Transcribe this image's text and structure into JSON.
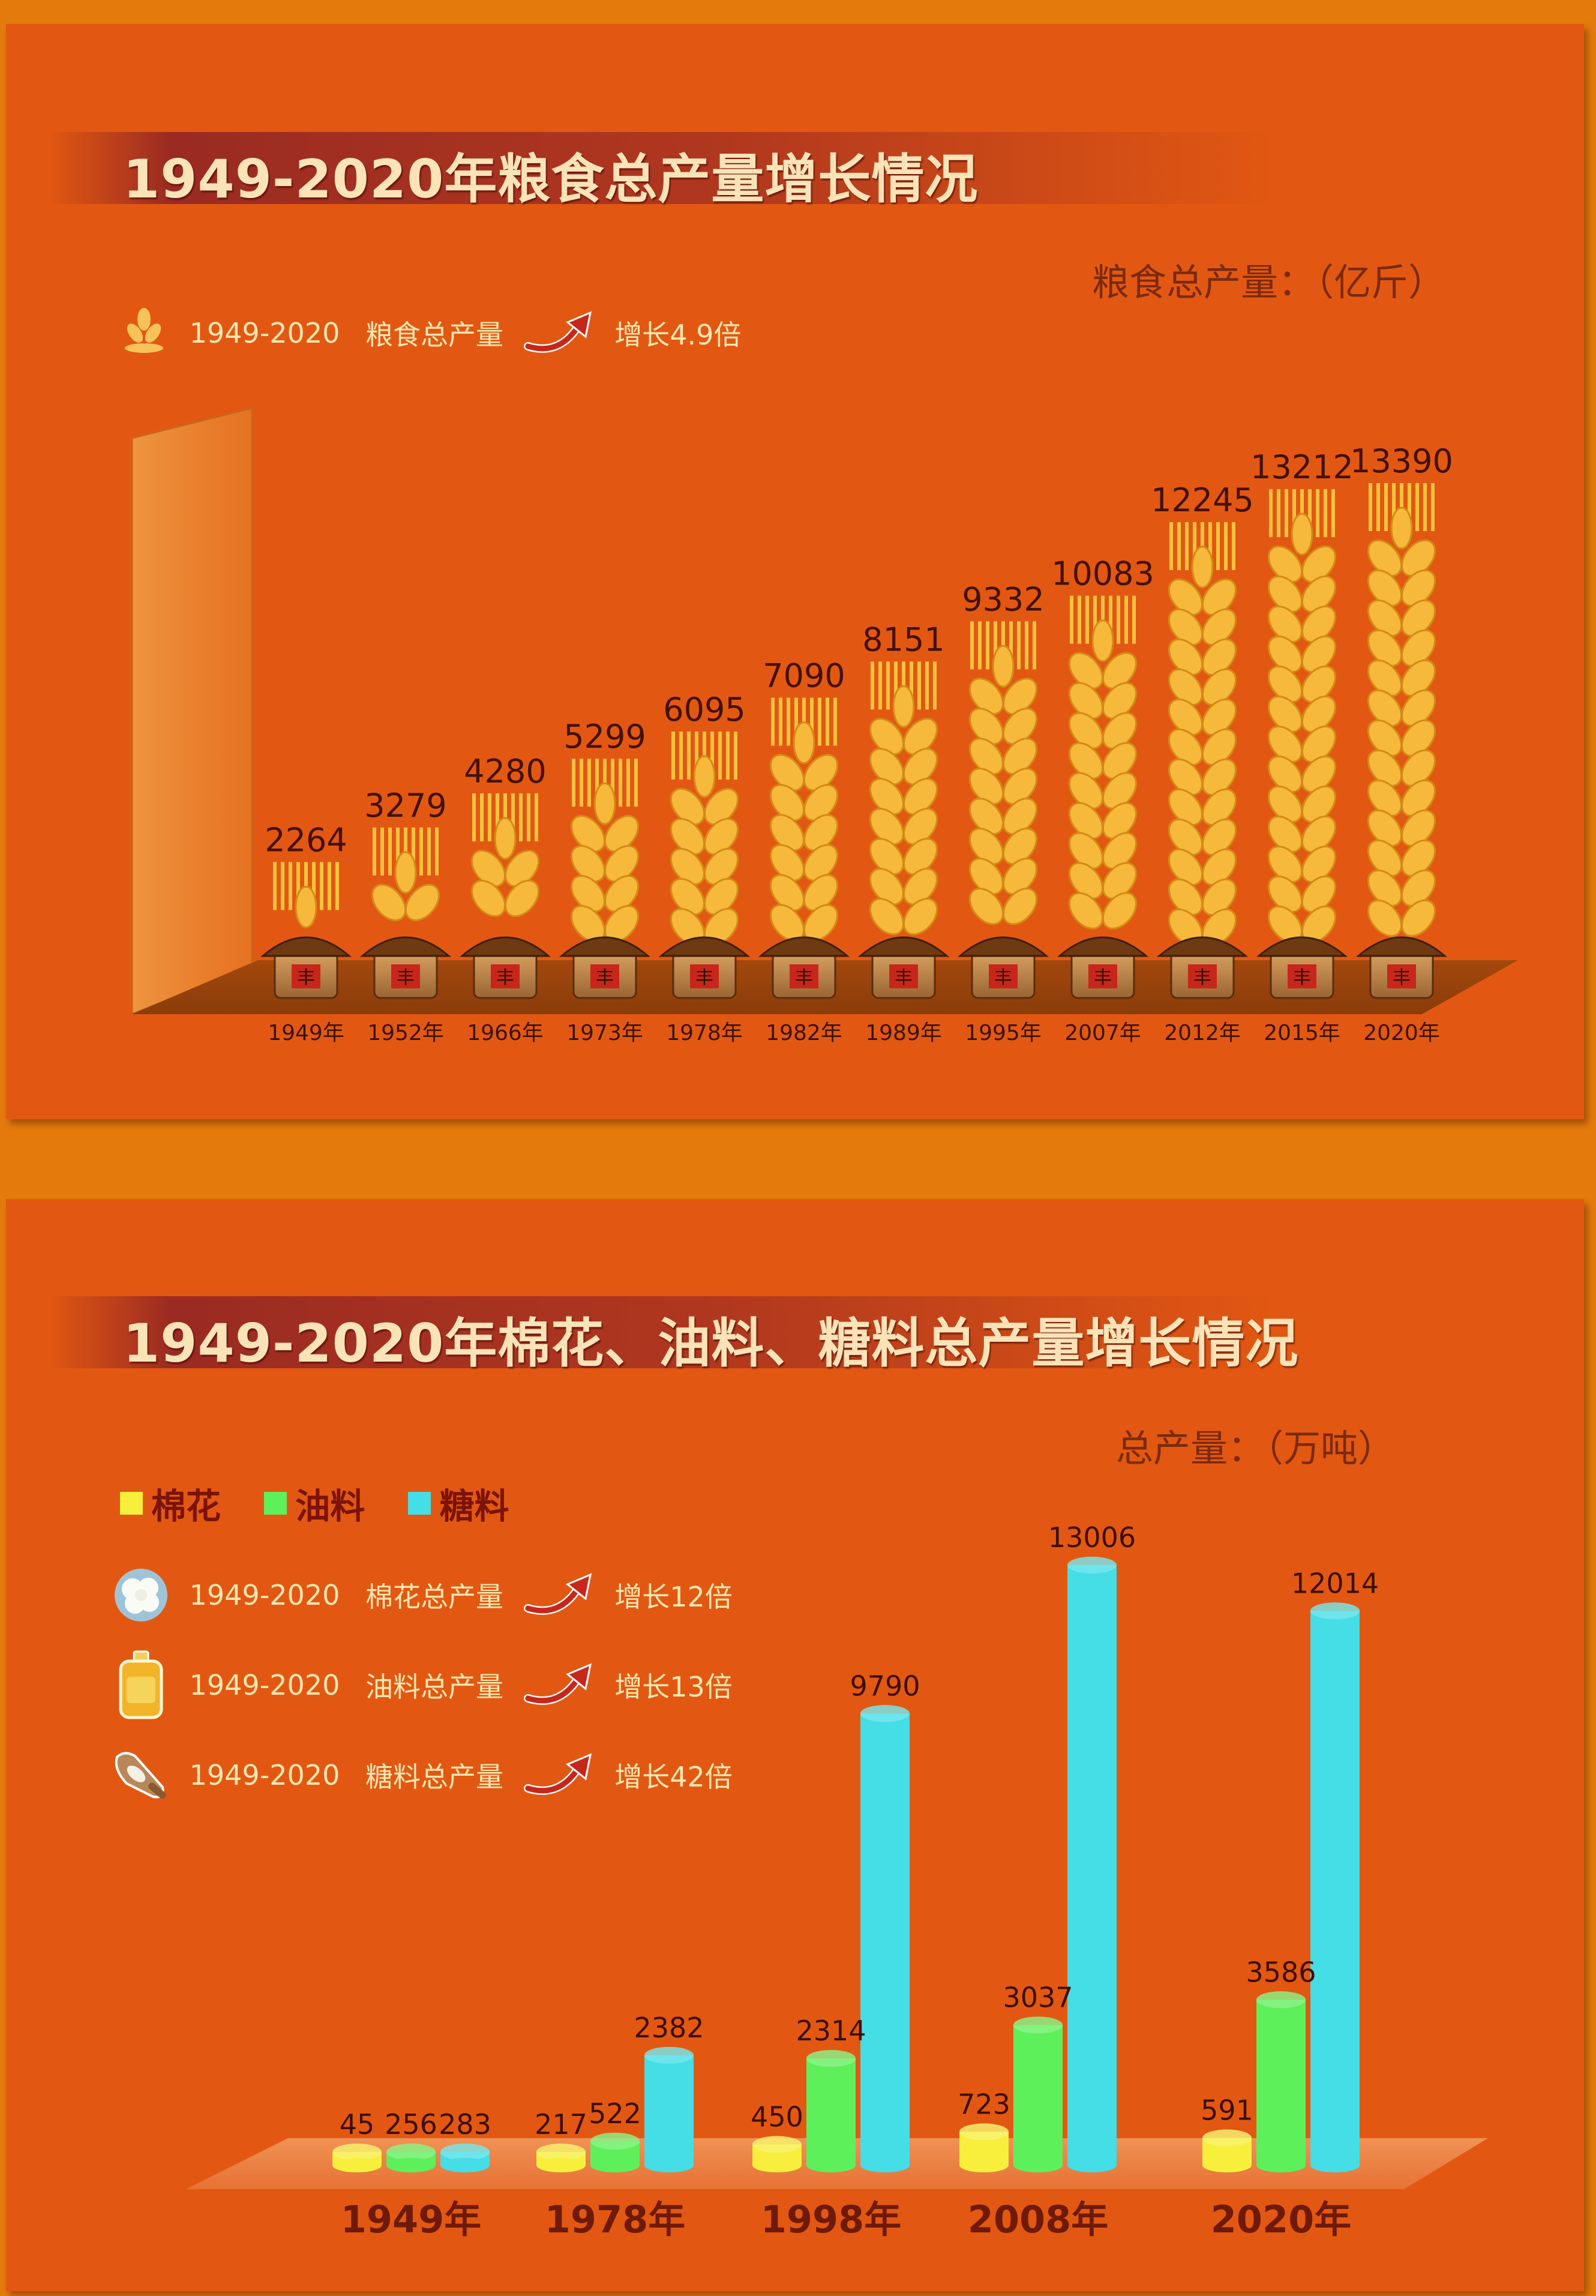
{
  "grain": {
    "title": "1949-2020年粮食总产量增长情况",
    "unit": "粮食总产量：（亿斤）",
    "legend": {
      "period": "1949-2020",
      "name": "粮食总产量",
      "growth": "增长4.9倍"
    },
    "badge_char": "丰",
    "colors": {
      "wheat": "#f6b93b",
      "base": "#7a3b0e"
    }
  },
  "crops": {
    "title": "1949-2020年棉花、油料、糖料总产量增长情况",
    "unit": "总产量：（万吨）",
    "legend": {
      "cotton": "棉花",
      "oil": "油料",
      "sugar": "糖料"
    },
    "growth": [
      {
        "period": "1949-2020",
        "name": "棉花总产量",
        "growth": "增长12倍",
        "icon": "cotton-icon"
      },
      {
        "period": "1949-2020",
        "name": "油料总产量",
        "growth": "增长13倍",
        "icon": "oil-bottle-icon"
      },
      {
        "period": "1949-2020",
        "name": "糖料总产量",
        "growth": "增长42倍",
        "icon": "sugar-scoop-icon"
      }
    ],
    "colors": {
      "cotton": "#f7ef3c",
      "oil": "#5ef05a",
      "sugar": "#45dde6"
    }
  },
  "chart_data": [
    {
      "type": "bar",
      "title": "1949-2020年粮食总产量增长情况",
      "ylabel": "粮食总产量：（亿斤）",
      "categories": [
        "1949年",
        "1952年",
        "1966年",
        "1973年",
        "1978年",
        "1982年",
        "1989年",
        "1995年",
        "2007年",
        "2012年",
        "2015年",
        "2020年"
      ],
      "values": [
        2264,
        3279,
        4280,
        5299,
        6095,
        7090,
        8151,
        9332,
        10083,
        12245,
        13212,
        13390
      ],
      "ylim": [
        0,
        13390
      ]
    },
    {
      "type": "bar",
      "title": "1949-2020年棉花、油料、糖料总产量增长情况",
      "ylabel": "总产量：（万吨）",
      "categories": [
        "1949年",
        "1978年",
        "1998年",
        "2008年",
        "2020年"
      ],
      "series": [
        {
          "name": "棉花",
          "values": [
            45,
            217,
            450,
            723,
            591
          ]
        },
        {
          "name": "油料",
          "values": [
            256,
            522,
            2314,
            3037,
            3586
          ]
        },
        {
          "name": "糖料",
          "values": [
            283,
            2382,
            9790,
            13006,
            12014
          ]
        }
      ],
      "ylim": [
        0,
        13006
      ]
    }
  ]
}
